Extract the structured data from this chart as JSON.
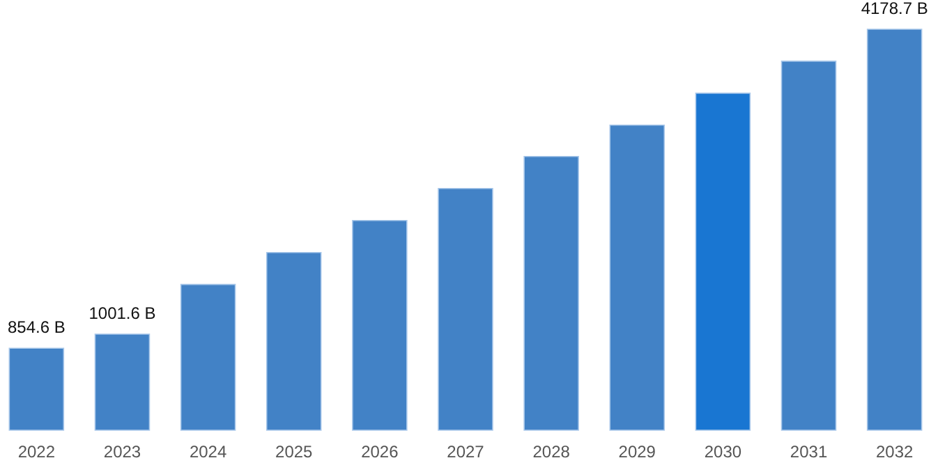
{
  "chart_data": {
    "type": "bar",
    "categories": [
      "2022",
      "2023",
      "2024",
      "2025",
      "2026",
      "2027",
      "2028",
      "2029",
      "2030",
      "2031",
      "2032"
    ],
    "values": [
      854.6,
      1001.6,
      1519,
      1852,
      2186,
      2519,
      2853,
      3179,
      3512,
      3846,
      4178.7
    ],
    "colors": [
      "#4282c6",
      "#4282c6",
      "#4282c6",
      "#4282c6",
      "#4282c6",
      "#4282c6",
      "#4282c6",
      "#4282c6",
      "#1976d2",
      "#4282c6",
      "#4282c6"
    ],
    "value_labels": [
      "854.6 B",
      "1001.6 B",
      null,
      null,
      null,
      null,
      null,
      null,
      null,
      null,
      "4178.7 B"
    ],
    "grid": false
  }
}
